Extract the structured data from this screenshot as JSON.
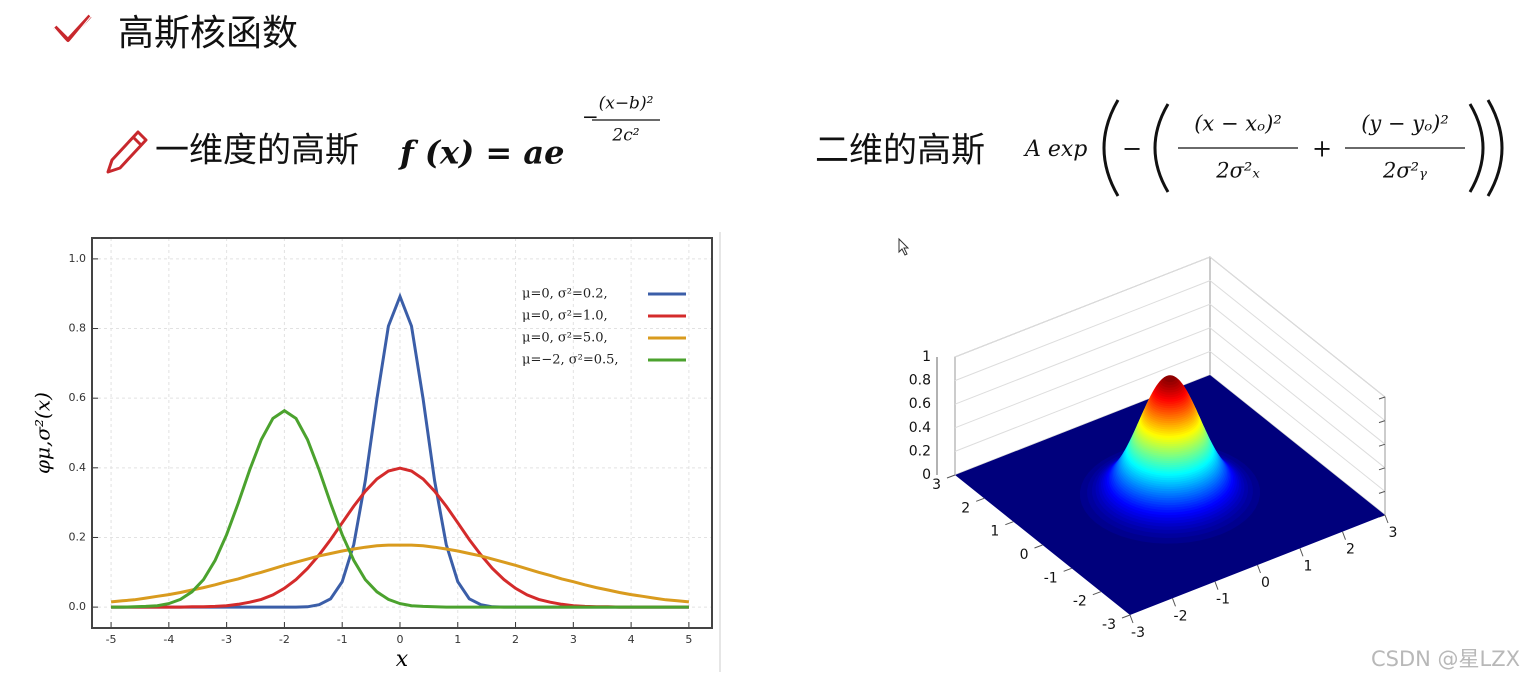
{
  "header": {
    "title": "高斯核函数"
  },
  "formula_1d": {
    "label": "一维度的高斯",
    "lhs": "f (x) = ae",
    "sign": "−",
    "num": "(x−b)²",
    "den": "2c²"
  },
  "formula_2d": {
    "label": "二维的高斯",
    "prefix": "A exp",
    "sign": "−",
    "num_x": "(x − xₒ)²",
    "den_x": "2σ²ₓ",
    "plus": "+",
    "num_y": "(y − yₒ)²",
    "den_y": "2σ²ᵧ"
  },
  "chart_data": [
    {
      "type": "line",
      "xlabel": "x",
      "ylabel": "φμ,σ²(x)",
      "x": [
        -5,
        -4.8,
        -4.6,
        -4.4,
        -4.2,
        -4,
        -3.8,
        -3.6,
        -3.4,
        -3.2,
        -3,
        -2.8,
        -2.6,
        -2.4,
        -2.2,
        -2,
        -1.8,
        -1.6,
        -1.4,
        -1.2,
        -1,
        -0.8,
        -0.6,
        -0.4,
        -0.2,
        0,
        0.2,
        0.4,
        0.6,
        0.8,
        1,
        1.2,
        1.4,
        1.6,
        1.8,
        2,
        2.2,
        2.4,
        2.6,
        2.8,
        3,
        3.2,
        3.4,
        3.6,
        3.8,
        4,
        4.2,
        4.4,
        4.6,
        4.8,
        5
      ],
      "xlim": [
        -5.33,
        5.4
      ],
      "ylim": [
        -0.06,
        1.06
      ],
      "xticks": [
        -5,
        -4,
        -3,
        -2,
        -1,
        0,
        1,
        2,
        3,
        4,
        5
      ],
      "yticks": [
        {
          "value": 0,
          "label": "0.0"
        },
        0.2,
        0.4,
        0.6,
        0.8,
        {
          "value": 1,
          "label": "1.0"
        }
      ],
      "grid": true,
      "legend": "upper right",
      "series": [
        {
          "name": "μ=0,   σ²=0.2,",
          "color": "#3b5ea8",
          "values": [
            0,
            0,
            0,
            0,
            0,
            0,
            0,
            0,
            0,
            0,
            0,
            0,
            0,
            0,
            0,
            0,
            0,
            0.001,
            0.007,
            0.024,
            0.073,
            0.18,
            0.363,
            0.598,
            0.807,
            0.892,
            0.807,
            0.598,
            0.363,
            0.18,
            0.073,
            0.024,
            0.007,
            0.001,
            0,
            0,
            0,
            0,
            0,
            0,
            0,
            0,
            0,
            0,
            0,
            0,
            0,
            0,
            0,
            0,
            0
          ]
        },
        {
          "name": "μ=0,   σ²=1.0,",
          "color": "#d42b2b",
          "values": [
            0,
            0,
            0,
            0,
            0,
            0,
            0,
            0.001,
            0.001,
            0.002,
            0.004,
            0.008,
            0.014,
            0.022,
            0.035,
            0.054,
            0.079,
            0.111,
            0.15,
            0.194,
            0.242,
            0.29,
            0.333,
            0.368,
            0.391,
            0.399,
            0.391,
            0.368,
            0.333,
            0.29,
            0.242,
            0.194,
            0.15,
            0.111,
            0.079,
            0.054,
            0.035,
            0.022,
            0.014,
            0.008,
            0.004,
            0.002,
            0.001,
            0.001,
            0,
            0,
            0,
            0,
            0,
            0,
            0
          ]
        },
        {
          "name": "μ=0,   σ²=5.0,",
          "color": "#d99b1e",
          "values": [
            0.015,
            0.018,
            0.021,
            0.026,
            0.031,
            0.036,
            0.042,
            0.049,
            0.056,
            0.064,
            0.073,
            0.081,
            0.091,
            0.1,
            0.11,
            0.12,
            0.129,
            0.138,
            0.147,
            0.154,
            0.161,
            0.167,
            0.172,
            0.176,
            0.178,
            0.178,
            0.178,
            0.176,
            0.172,
            0.167,
            0.161,
            0.154,
            0.147,
            0.138,
            0.129,
            0.12,
            0.11,
            0.1,
            0.091,
            0.081,
            0.073,
            0.064,
            0.056,
            0.049,
            0.042,
            0.036,
            0.031,
            0.026,
            0.021,
            0.018,
            0.015
          ]
        },
        {
          "name": "μ=−2,  σ²=0.5,",
          "color": "#4ba22e",
          "values": [
            0,
            0,
            0.001,
            0.002,
            0.004,
            0.01,
            0.022,
            0.044,
            0.079,
            0.134,
            0.208,
            0.298,
            0.394,
            0.481,
            0.542,
            0.564,
            0.542,
            0.481,
            0.394,
            0.298,
            0.208,
            0.134,
            0.079,
            0.044,
            0.022,
            0.01,
            0.004,
            0.002,
            0.001,
            0,
            0,
            0,
            0,
            0,
            0,
            0,
            0,
            0,
            0,
            0,
            0,
            0,
            0,
            0,
            0,
            0,
            0,
            0,
            0,
            0,
            0
          ]
        }
      ]
    },
    {
      "type": "surface",
      "colormap": "jet",
      "xlim": [
        -3,
        3
      ],
      "ylim": [
        -3,
        3
      ],
      "zlim": [
        0,
        1
      ],
      "xticks": [
        -3,
        -2,
        -1,
        0,
        1,
        2,
        3
      ],
      "yticks": [
        -3,
        -2,
        -1,
        0,
        1,
        2,
        3
      ],
      "zticks": [
        0,
        0.2,
        0.4,
        0.6,
        0.8,
        1
      ]
    }
  ],
  "watermark": "CSDN @星LZX"
}
